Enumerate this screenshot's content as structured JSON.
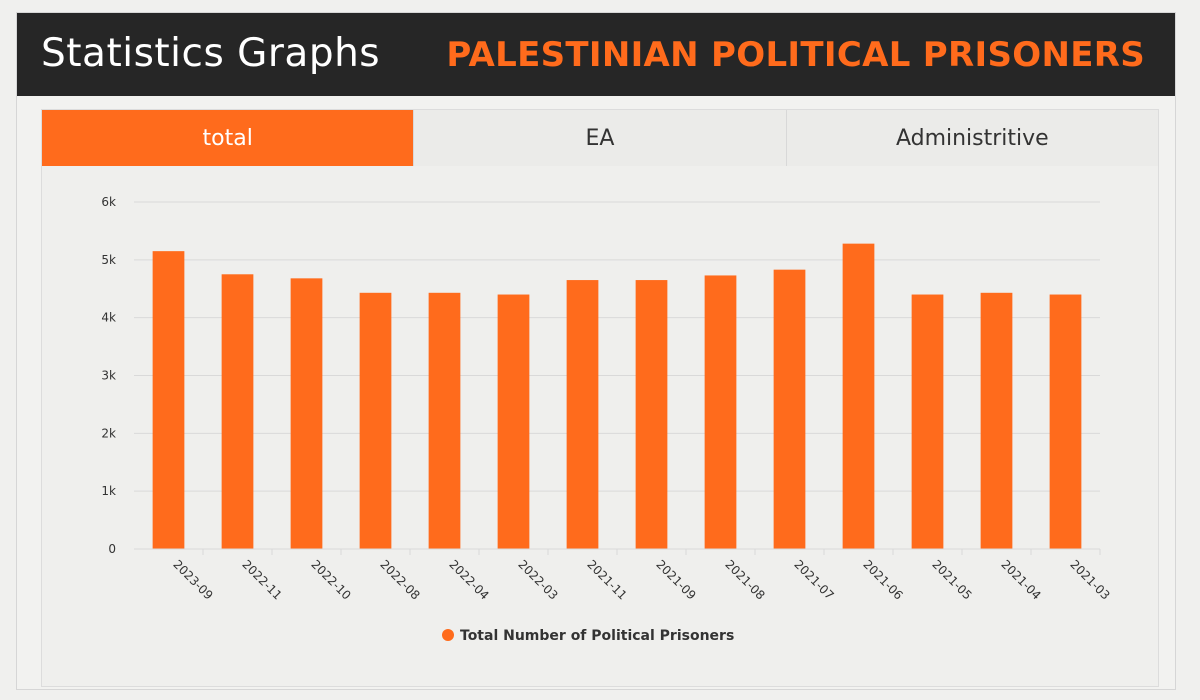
{
  "header": {
    "title": "Statistics Graphs",
    "subtitle": "PALESTINIAN POLITICAL PRISONERS"
  },
  "tabs": [
    {
      "label": "total",
      "active": true
    },
    {
      "label": "EA",
      "active": false
    },
    {
      "label": "Administritive",
      "active": false
    }
  ],
  "colors": {
    "accent": "#ff6b1c",
    "header_bg": "#262626",
    "bar": "#ff6b1c",
    "grid": "#d9d9d9"
  },
  "chart_data": {
    "type": "bar",
    "title": "",
    "xlabel": "",
    "ylabel": "",
    "categories": [
      "2023-09",
      "2022-11",
      "2022-10",
      "2022-08",
      "2022-04",
      "2022-03",
      "2021-11",
      "2021-09",
      "2021-08",
      "2021-07",
      "2021-06",
      "2021-05",
      "2021-04",
      "2021-03"
    ],
    "series": [
      {
        "name": "Total Number of Political Prisoners",
        "values": [
          5150,
          4750,
          4680,
          4430,
          4430,
          4400,
          4650,
          4650,
          4730,
          4830,
          5280,
          4400,
          4430,
          4400
        ]
      }
    ],
    "ylim": [
      0,
      6000
    ],
    "yticks": [
      0,
      1000,
      2000,
      3000,
      4000,
      5000,
      6000
    ],
    "ytick_labels": [
      "0",
      "1k",
      "2k",
      "3k",
      "4k",
      "5k",
      "6k"
    ],
    "grid": true,
    "legend_position": "bottom-center"
  }
}
